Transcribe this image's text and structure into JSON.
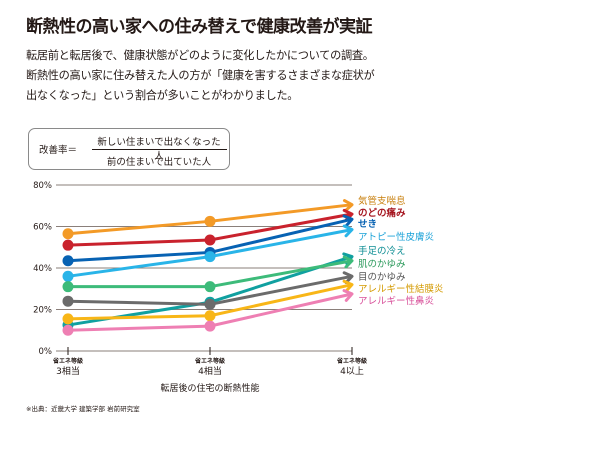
{
  "header": {
    "title": "断熱性の高い家への住み替えで健康改善が実証",
    "description_lines": [
      "転居前と転居後で、健康状態がどのように変化したかについての調査。",
      "断熱性の高い家に住み替えた人の方が「健康を害するさまざまな症状が",
      "出なくなった」という割合が多いことがわかりました。"
    ]
  },
  "formula": {
    "lhs": "改善率＝",
    "numerator": "新しい住まいで出なくなった人",
    "denominator": "前の住まいで出ていた人"
  },
  "source": "※出典：近畿大学 建築学部 岩前研究室",
  "chart_data": {
    "type": "line",
    "title": "",
    "xlabel": "転居後の住宅の断熱性能",
    "ylabel": "",
    "ylim": [
      0,
      80
    ],
    "yticks": [
      0,
      20,
      40,
      60,
      80
    ],
    "ytick_labels": [
      "0%",
      "20%",
      "40%",
      "60%",
      "80%"
    ],
    "grid": true,
    "legend_placement": "right",
    "categories": [
      {
        "top": "省エネ等級",
        "bottom": "3相当"
      },
      {
        "top": "省エネ等級",
        "bottom": "4相当"
      },
      {
        "top": "省エネ等級",
        "bottom": "4以上"
      }
    ],
    "series": [
      {
        "name": "気管支喘息",
        "color": "#F39A27",
        "label_color": "#C8800F",
        "values": [
          56.5,
          62.5,
          70.5
        ]
      },
      {
        "name": "のどの痛み",
        "color": "#C9222D",
        "label_color": "#A5141E",
        "values": [
          51,
          53.5,
          66
        ]
      },
      {
        "name": "せき",
        "color": "#0762B3",
        "label_color": "#0762B3",
        "values": [
          43.5,
          47.5,
          63.5
        ]
      },
      {
        "name": "アトピー性皮膚炎",
        "color": "#29B4E8",
        "label_color": "#1DA3D8",
        "values": [
          36,
          45.5,
          58.5
        ]
      },
      {
        "name": "手足の冷え",
        "color": "#10A0A0",
        "label_color": "#0E8E94",
        "values": [
          12.5,
          23.5,
          45.5
        ]
      },
      {
        "name": "肌のかゆみ",
        "color": "#3DBB7A",
        "label_color": "#2C9A5C",
        "values": [
          31,
          31,
          43.5
        ]
      },
      {
        "name": "目のかゆみ",
        "color": "#6B6B6B",
        "label_color": "#555555",
        "values": [
          24,
          22.5,
          36
        ]
      },
      {
        "name": "アレルギー性結膜炎",
        "color": "#F8B617",
        "label_color": "#D49A00",
        "values": [
          15.5,
          17,
          32
        ]
      },
      {
        "name": "アレルギー性鼻炎",
        "color": "#EE7FB3",
        "label_color": "#D8509A",
        "values": [
          10,
          12,
          27.5
        ]
      }
    ]
  }
}
